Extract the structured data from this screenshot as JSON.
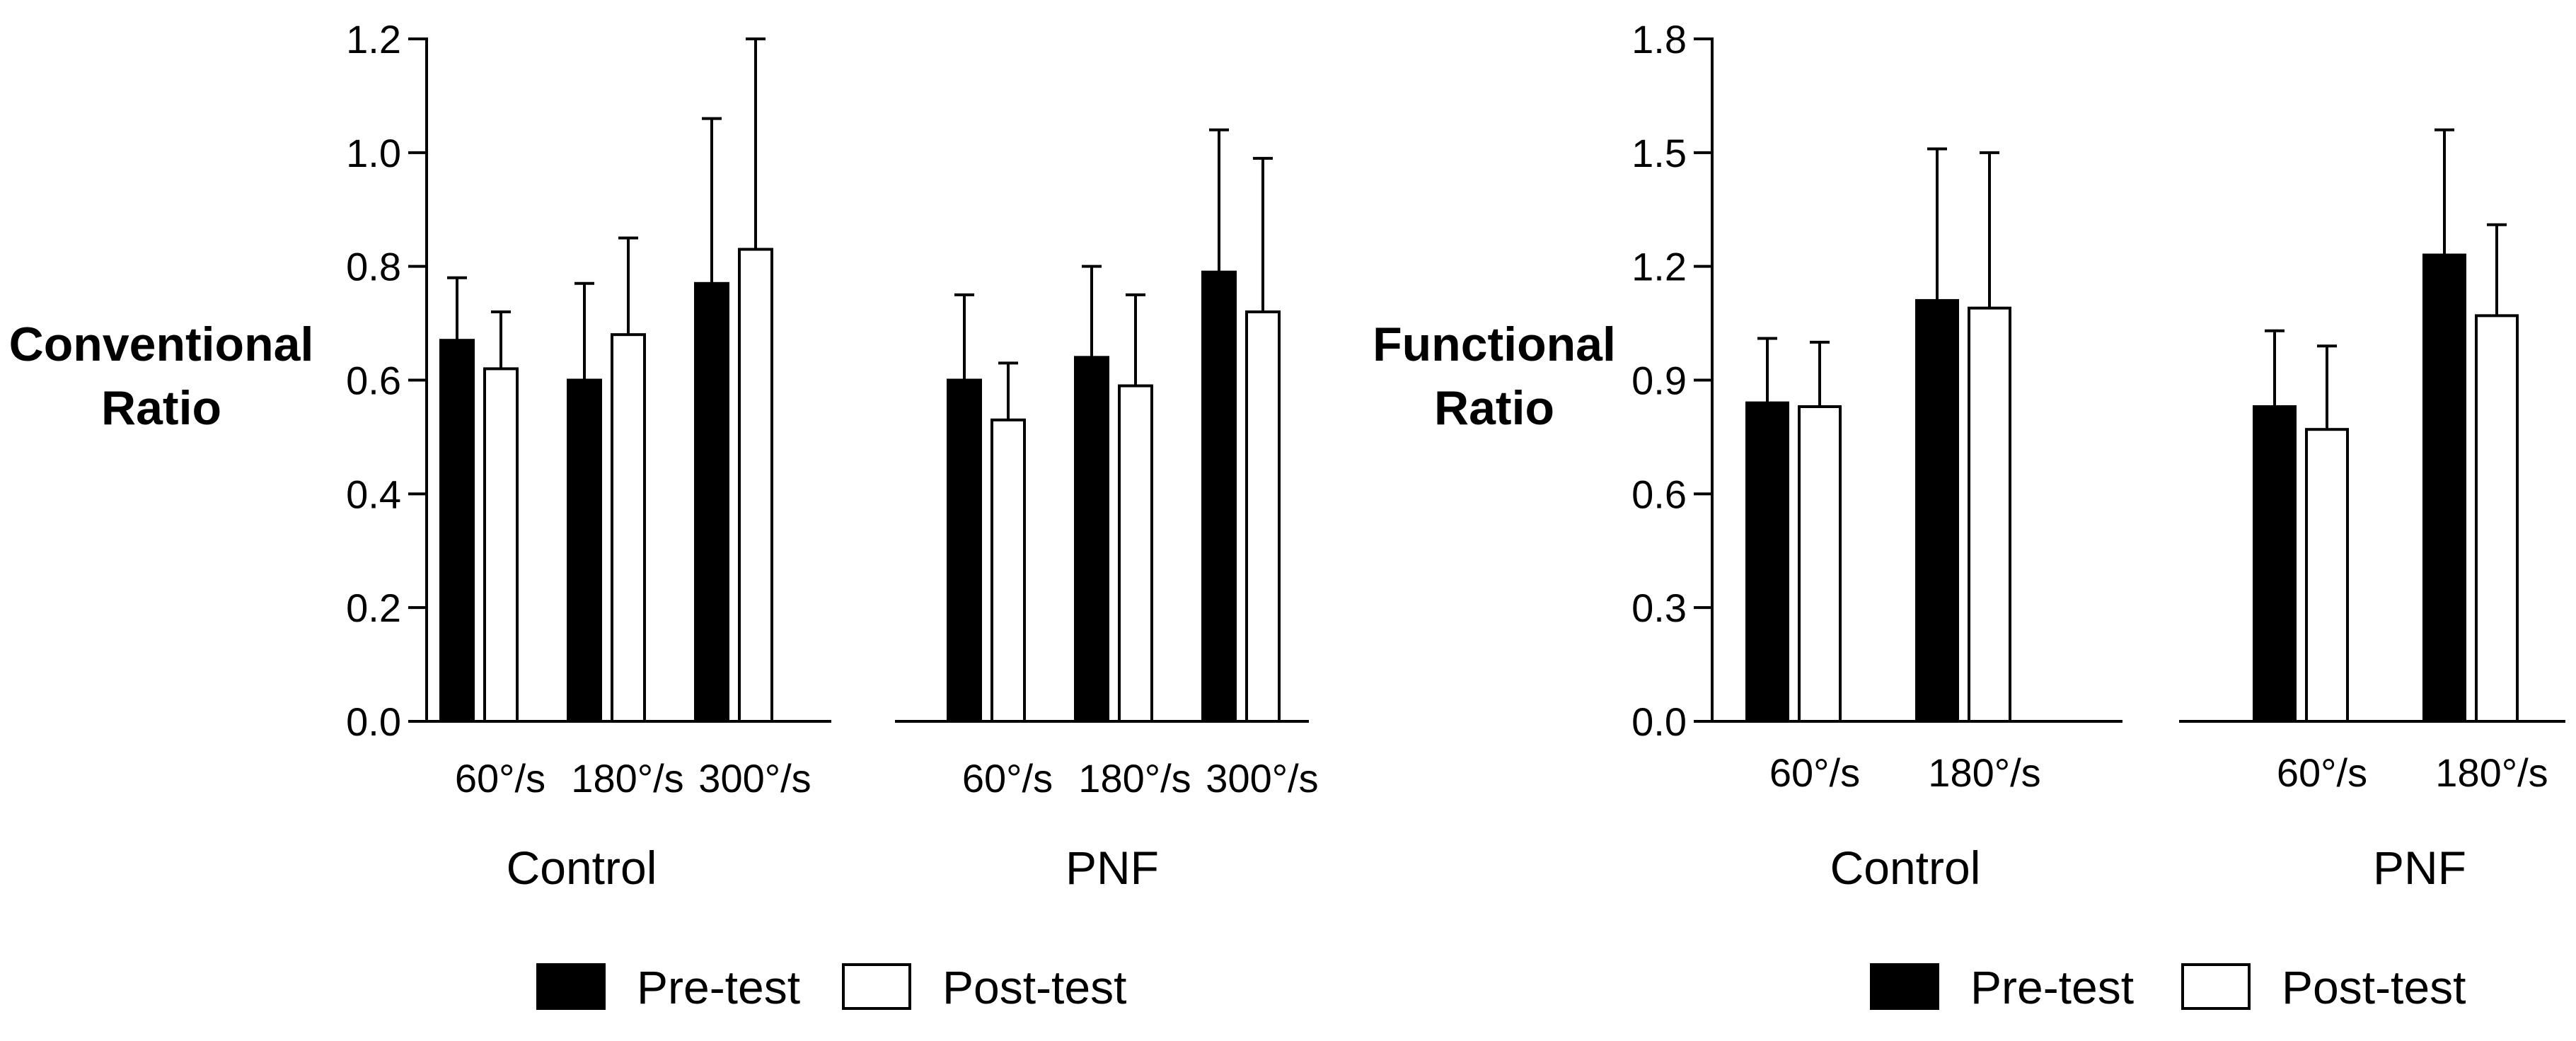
{
  "chart_data": [
    {
      "type": "bar",
      "title": "",
      "ylabel": "Conventional Ratio",
      "ylabel_lines": [
        "Conventional",
        "Ratio"
      ],
      "ylim": [
        0,
        1.2
      ],
      "yticks": [
        "0.0",
        "0.2",
        "0.4",
        "0.6",
        "0.8",
        "1.0",
        "1.2"
      ],
      "ytick_values": [
        0,
        0.2,
        0.4,
        0.6,
        0.8,
        1.0,
        1.2
      ],
      "groups": [
        {
          "label": "Control",
          "categories": [
            "60°/s",
            "180°/s",
            "300°/s"
          ],
          "series": [
            {
              "name": "Pre-test",
              "values": [
                0.67,
                0.6,
                0.77
              ],
              "errors": [
                0.11,
                0.17,
                0.29
              ]
            },
            {
              "name": "Post-test",
              "values": [
                0.62,
                0.68,
                0.83
              ],
              "errors": [
                0.1,
                0.17,
                0.37
              ]
            }
          ]
        },
        {
          "label": "PNF",
          "categories": [
            "60°/s",
            "180°/s",
            "300°/s"
          ],
          "series": [
            {
              "name": "Pre-test",
              "values": [
                0.6,
                0.64,
                0.79
              ],
              "errors": [
                0.15,
                0.16,
                0.25
              ]
            },
            {
              "name": "Post-test",
              "values": [
                0.53,
                0.59,
                0.72
              ],
              "errors": [
                0.1,
                0.16,
                0.27
              ]
            }
          ]
        }
      ],
      "legend": [
        {
          "name": "Pre-test",
          "color": "#000000"
        },
        {
          "name": "Post-test",
          "color": "#ffffff"
        }
      ]
    },
    {
      "type": "bar",
      "title": "",
      "ylabel": "Functional Ratio",
      "ylabel_lines": [
        "Functional",
        "Ratio"
      ],
      "ylim": [
        0,
        1.8
      ],
      "yticks": [
        "0.0",
        "0.3",
        "0.6",
        "0.9",
        "1.2",
        "1.5",
        "1.8"
      ],
      "ytick_values": [
        0,
        0.3,
        0.6,
        0.9,
        1.2,
        1.5,
        1.8
      ],
      "groups": [
        {
          "label": "Control",
          "categories": [
            "60°/s",
            "180°/s"
          ],
          "series": [
            {
              "name": "Pre-test",
              "values": [
                0.84,
                1.11
              ],
              "errors": [
                0.17,
                0.4
              ]
            },
            {
              "name": "Post-test",
              "values": [
                0.83,
                1.09
              ],
              "errors": [
                0.17,
                0.41
              ]
            }
          ]
        },
        {
          "label": "PNF",
          "categories": [
            "60°/s",
            "180°/s"
          ],
          "series": [
            {
              "name": "Pre-test",
              "values": [
                0.83,
                1.23
              ],
              "errors": [
                0.2,
                0.33
              ]
            },
            {
              "name": "Post-test",
              "values": [
                0.77,
                1.07
              ],
              "errors": [
                0.22,
                0.24
              ]
            }
          ]
        }
      ],
      "legend": [
        {
          "name": "Pre-test",
          "color": "#000000"
        },
        {
          "name": "Post-test",
          "color": "#ffffff"
        }
      ]
    }
  ]
}
